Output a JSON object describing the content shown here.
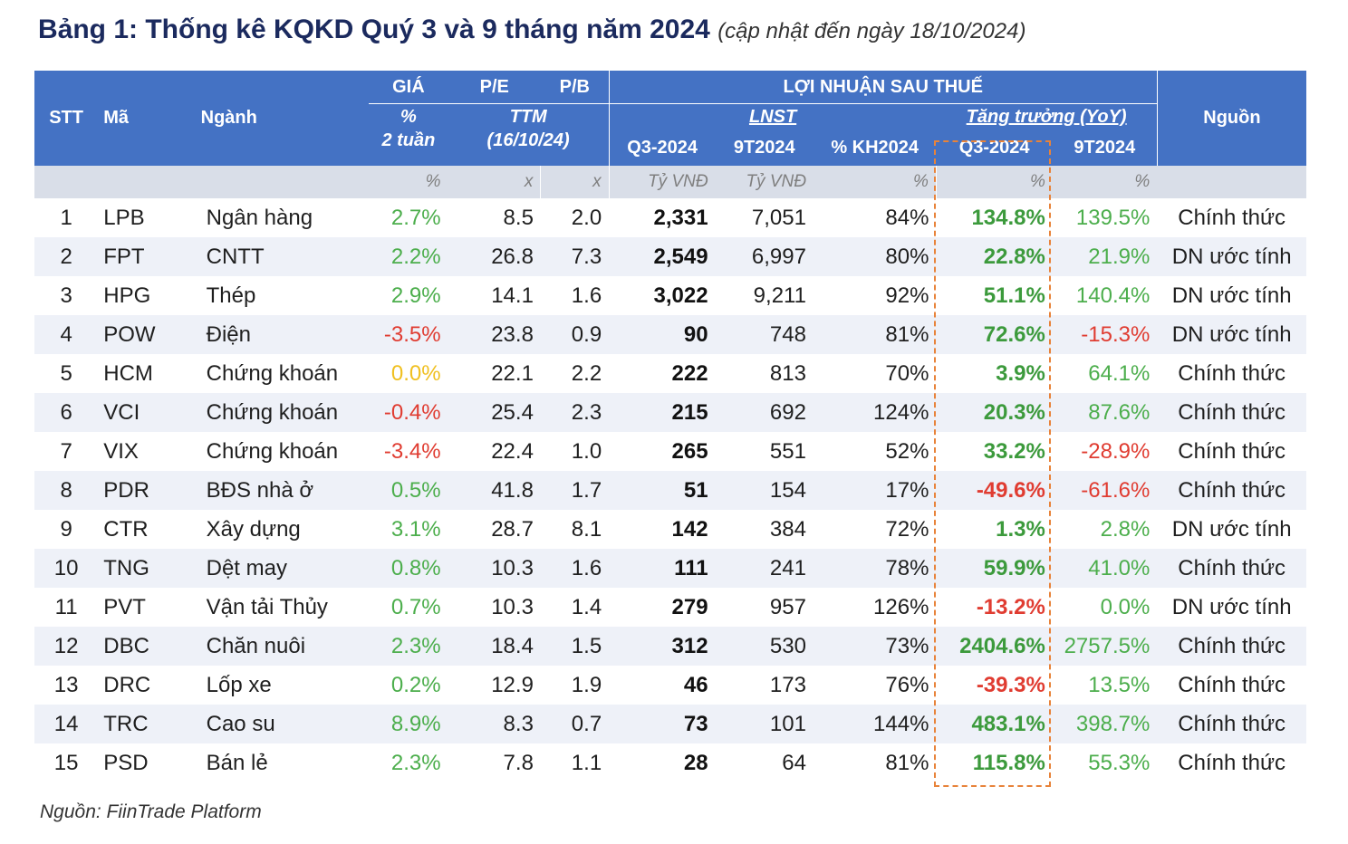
{
  "title": {
    "main": "Bảng 1: Thống kê KQKD Quý 3 và 9 tháng năm 2024",
    "sub": "(cập nhật đến ngày 18/10/2024)"
  },
  "header": {
    "stt": "STT",
    "ma": "Mã",
    "nganh": "Ngành",
    "gia": "GIÁ",
    "pe": "P/E",
    "pb": "P/B",
    "lnst_group": "LỢI NHUẬN SAU THUẾ",
    "nguon": "Nguồn",
    "pct": "%",
    "hai_tuan": "2 tuần",
    "ttm": "TTM",
    "ttm_date": "(16/10/24)",
    "lnst": "LNST",
    "tang_truong": "Tăng trưởng (YoY)",
    "q3": "Q3-2024",
    "n9t": "9T2024",
    "kh": "% KH2024",
    "g_q3": "Q3-2024",
    "g_9t": "9T2024"
  },
  "units": {
    "gia": "%",
    "pe": "x",
    "pb": "x",
    "q3": "Tỷ VNĐ",
    "n9t": "Tỷ VNĐ",
    "kh": "%",
    "g_q3": "%",
    "g_9t": "%"
  },
  "rows": [
    {
      "stt": "1",
      "ma": "LPB",
      "nganh": "Ngân hàng",
      "gia": "2.7%",
      "pe": "8.5",
      "pb": "2.0",
      "q3": "2,331",
      "n9t": "7,051",
      "kh": "84%",
      "g_q3": "134.8%",
      "g_9t": "139.5%",
      "nguon": "Chính thức"
    },
    {
      "stt": "2",
      "ma": "FPT",
      "nganh": "CNTT",
      "gia": "2.2%",
      "pe": "26.8",
      "pb": "7.3",
      "q3": "2,549",
      "n9t": "6,997",
      "kh": "80%",
      "g_q3": "22.8%",
      "g_9t": "21.9%",
      "nguon": "DN ước tính"
    },
    {
      "stt": "3",
      "ma": "HPG",
      "nganh": "Thép",
      "gia": "2.9%",
      "pe": "14.1",
      "pb": "1.6",
      "q3": "3,022",
      "n9t": "9,211",
      "kh": "92%",
      "g_q3": "51.1%",
      "g_9t": "140.4%",
      "nguon": "DN ước tính"
    },
    {
      "stt": "4",
      "ma": "POW",
      "nganh": "Điện",
      "gia": "-3.5%",
      "pe": "23.8",
      "pb": "0.9",
      "q3": "90",
      "n9t": "748",
      "kh": "81%",
      "g_q3": "72.6%",
      "g_9t": "-15.3%",
      "nguon": "DN ước tính"
    },
    {
      "stt": "5",
      "ma": "HCM",
      "nganh": "Chứng khoán",
      "gia": "0.0%",
      "pe": "22.1",
      "pb": "2.2",
      "q3": "222",
      "n9t": "813",
      "kh": "70%",
      "g_q3": "3.9%",
      "g_9t": "64.1%",
      "nguon": "Chính thức"
    },
    {
      "stt": "6",
      "ma": "VCI",
      "nganh": "Chứng khoán",
      "gia": "-0.4%",
      "pe": "25.4",
      "pb": "2.3",
      "q3": "215",
      "n9t": "692",
      "kh": "124%",
      "g_q3": "20.3%",
      "g_9t": "87.6%",
      "nguon": "Chính thức"
    },
    {
      "stt": "7",
      "ma": "VIX",
      "nganh": "Chứng khoán",
      "gia": "-3.4%",
      "pe": "22.4",
      "pb": "1.0",
      "q3": "265",
      "n9t": "551",
      "kh": "52%",
      "g_q3": "33.2%",
      "g_9t": "-28.9%",
      "nguon": "Chính thức"
    },
    {
      "stt": "8",
      "ma": "PDR",
      "nganh": "BĐS nhà ở",
      "gia": "0.5%",
      "pe": "41.8",
      "pb": "1.7",
      "q3": "51",
      "n9t": "154",
      "kh": "17%",
      "g_q3": "-49.6%",
      "g_9t": "-61.6%",
      "nguon": "Chính thức"
    },
    {
      "stt": "9",
      "ma": "CTR",
      "nganh": "Xây dựng",
      "gia": "3.1%",
      "pe": "28.7",
      "pb": "8.1",
      "q3": "142",
      "n9t": "384",
      "kh": "72%",
      "g_q3": "1.3%",
      "g_9t": "2.8%",
      "nguon": "DN ước tính"
    },
    {
      "stt": "10",
      "ma": "TNG",
      "nganh": "Dệt may",
      "gia": "0.8%",
      "pe": "10.3",
      "pb": "1.6",
      "q3": "111",
      "n9t": "241",
      "kh": "78%",
      "g_q3": "59.9%",
      "g_9t": "41.0%",
      "nguon": "Chính thức"
    },
    {
      "stt": "11",
      "ma": "PVT",
      "nganh": "Vận tải Thủy",
      "gia": "0.7%",
      "pe": "10.3",
      "pb": "1.4",
      "q3": "279",
      "n9t": "957",
      "kh": "126%",
      "g_q3": "-13.2%",
      "g_9t": "0.0%",
      "nguon": "DN ước tính"
    },
    {
      "stt": "12",
      "ma": "DBC",
      "nganh": "Chăn nuôi",
      "gia": "2.3%",
      "pe": "18.4",
      "pb": "1.5",
      "q3": "312",
      "n9t": "530",
      "kh": "73%",
      "g_q3": "2404.6%",
      "g_9t": "2757.5%",
      "nguon": "Chính thức"
    },
    {
      "stt": "13",
      "ma": "DRC",
      "nganh": "Lốp xe",
      "gia": "0.2%",
      "pe": "12.9",
      "pb": "1.9",
      "q3": "46",
      "n9t": "173",
      "kh": "76%",
      "g_q3": "-39.3%",
      "g_9t": "13.5%",
      "nguon": "Chính thức"
    },
    {
      "stt": "14",
      "ma": "TRC",
      "nganh": "Cao su",
      "gia": "8.9%",
      "pe": "8.3",
      "pb": "0.7",
      "q3": "73",
      "n9t": "101",
      "kh": "144%",
      "g_q3": "483.1%",
      "g_9t": "398.7%",
      "nguon": "Chính thức"
    },
    {
      "stt": "15",
      "ma": "PSD",
      "nganh": "Bán lẻ",
      "gia": "2.3%",
      "pe": "7.8",
      "pb": "1.1",
      "q3": "28",
      "n9t": "64",
      "kh": "81%",
      "g_q3": "115.8%",
      "g_9t": "55.3%",
      "nguon": "Chính thức"
    }
  ],
  "colors": {
    "header_bg": "#4472c4",
    "positive": "#4cae4c",
    "negative": "#e03c31",
    "zero": "#f0c020",
    "highlight_border": "#e8833a"
  },
  "footer": "Nguồn: FiinTrade Platform"
}
